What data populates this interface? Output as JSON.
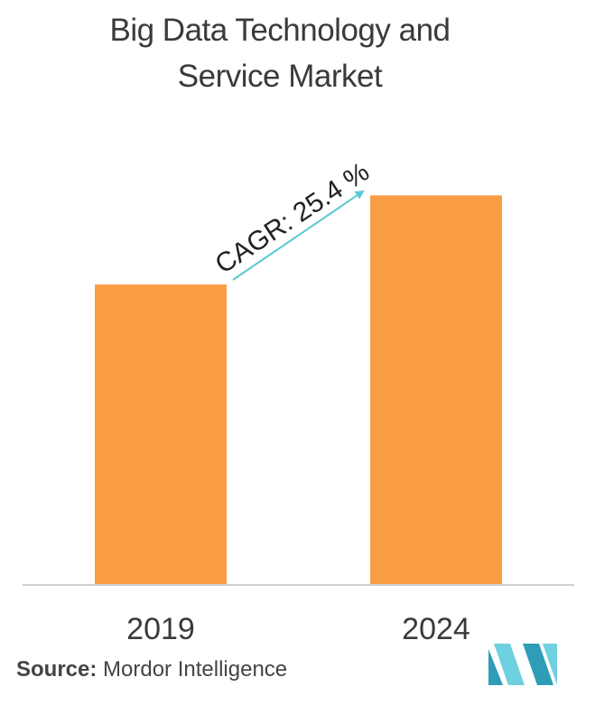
{
  "chart_data": {
    "type": "bar",
    "title_lines": [
      "Big Data Technology and",
      "Service Market"
    ],
    "categories": [
      "2019",
      "2024"
    ],
    "values": [
      64,
      83
    ],
    "ylim": [
      0,
      100
    ],
    "xlabel": "",
    "ylabel": "",
    "grid": false,
    "bar_color": "#F99D45",
    "annotation": {
      "text": "CAGR: 25.4 %",
      "arrow_color": "#5BC8D3"
    }
  },
  "source": {
    "label": "Source:",
    "text": "Mordor Intelligence"
  },
  "logo": {
    "icon": "mordor-intelligence-logo-icon",
    "colors": [
      "#2E9EB7",
      "#6FD0DF"
    ]
  }
}
